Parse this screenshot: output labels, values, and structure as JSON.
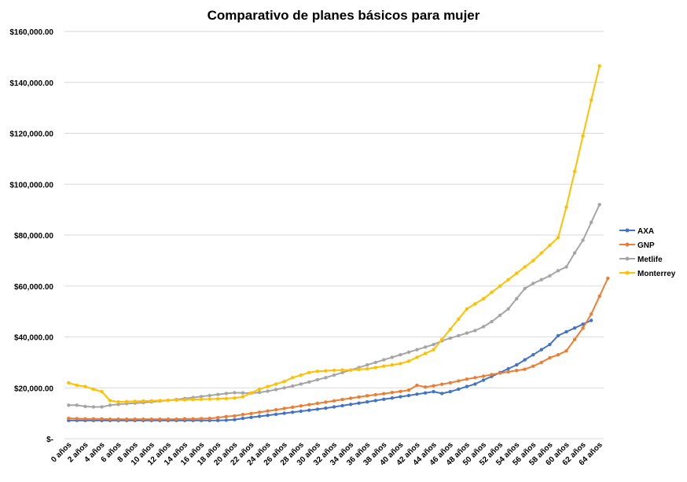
{
  "chart_data": {
    "type": "line",
    "title": "Comparativo de planes básicos para mujer",
    "xlabel": "",
    "ylabel": "",
    "ylim": [
      0,
      160000
    ],
    "y_ticks": [
      {
        "value": 0,
        "label": "$-"
      },
      {
        "value": 20000,
        "label": "$20,000.00"
      },
      {
        "value": 40000,
        "label": "$40,000.00"
      },
      {
        "value": 60000,
        "label": "$60,000.00"
      },
      {
        "value": 80000,
        "label": "$80,000.00"
      },
      {
        "value": 100000,
        "label": "$100,000.00"
      },
      {
        "value": 120000,
        "label": "$120,000.00"
      },
      {
        "value": 140000,
        "label": "$140,000.00"
      },
      {
        "value": 160000,
        "label": "$160,000.00"
      }
    ],
    "x_tick_labels": [
      "0 años",
      "2 años",
      "4 años",
      "6 años",
      "8 años",
      "10 años",
      "12 años",
      "14 años",
      "16 años",
      "18 años",
      "20 años",
      "22 años",
      "24 años",
      "26 años",
      "28 años",
      "30 años",
      "32 años",
      "34 años",
      "36 años",
      "38 años",
      "40 años",
      "42 años",
      "44 años",
      "46 años",
      "48 años",
      "50 años",
      "52 años",
      "54 años",
      "56 años",
      "58 años",
      "60 años",
      "62 años",
      "64 años"
    ],
    "grid": "horizontal",
    "legend_position": "right",
    "series": [
      {
        "name": "AXA",
        "color": "#4472C4",
        "values": [
          7200,
          7200,
          7200,
          7200,
          7200,
          7200,
          7200,
          7200,
          7200,
          7200,
          7200,
          7200,
          7200,
          7200,
          7200,
          7200,
          7200,
          7200,
          7200,
          7300,
          7500,
          8000,
          8400,
          8800,
          9200,
          9600,
          10000,
          10400,
          10800,
          11200,
          11600,
          12000,
          12500,
          13000,
          13500,
          14000,
          14500,
          15000,
          15500,
          16000,
          16500,
          17000,
          17500,
          18000,
          18500,
          17800,
          18500,
          19500,
          20500,
          21500,
          23000,
          24500,
          26000,
          27500,
          29000,
          31000,
          33000,
          35000,
          37000,
          40500,
          42000,
          43500,
          45000,
          46500
        ]
      },
      {
        "name": "GNP",
        "color": "#ED7D31",
        "values": [
          8000,
          7900,
          7800,
          7800,
          7800,
          7700,
          7700,
          7700,
          7700,
          7700,
          7700,
          7700,
          7700,
          7700,
          7800,
          7800,
          7900,
          8000,
          8300,
          8700,
          9000,
          9500,
          9900,
          10400,
          10900,
          11400,
          11900,
          12400,
          12900,
          13400,
          13900,
          14400,
          14900,
          15400,
          15900,
          16400,
          16900,
          17300,
          17700,
          18200,
          18600,
          19100,
          21000,
          20300,
          20800,
          21400,
          22000,
          22700,
          23400,
          24000,
          24600,
          25200,
          25800,
          26300,
          26800,
          27300,
          28500,
          30000,
          31800,
          33000,
          34500,
          39000,
          43500,
          49000,
          56000,
          63000
        ]
      },
      {
        "name": "Metlife",
        "color": "#A5A5A5",
        "values": [
          13200,
          13200,
          12700,
          12500,
          12500,
          13200,
          13500,
          13800,
          14000,
          14200,
          14500,
          14800,
          15100,
          15400,
          15800,
          16200,
          16600,
          17000,
          17400,
          17800,
          18100,
          18000,
          17900,
          18200,
          18700,
          19300,
          20000,
          20700,
          21500,
          22300,
          23200,
          24000,
          25000,
          26000,
          27000,
          28000,
          29000,
          30000,
          31000,
          32000,
          33000,
          34000,
          35000,
          36000,
          37000,
          38500,
          39500,
          40500,
          41500,
          42500,
          44000,
          46000,
          48500,
          51000,
          55000,
          59000,
          61000,
          62500,
          64000,
          66000,
          67500,
          73000,
          78000,
          85000,
          92000
        ]
      },
      {
        "name": "Monterrey",
        "color": "#FFC000",
        "values": [
          22000,
          21000,
          20500,
          19500,
          18500,
          15000,
          14500,
          14600,
          14700,
          14800,
          14900,
          15000,
          15100,
          15200,
          15300,
          15400,
          15500,
          15600,
          15700,
          15800,
          16000,
          16500,
          18000,
          19500,
          20500,
          21500,
          22500,
          24000,
          25000,
          26000,
          26500,
          26700,
          26900,
          27000,
          27000,
          27200,
          27500,
          28000,
          28500,
          29000,
          29500,
          30500,
          32000,
          33500,
          35000,
          39000,
          43000,
          47000,
          51000,
          53000,
          55000,
          57500,
          60000,
          62500,
          65000,
          67500,
          70000,
          73000,
          76000,
          79000,
          91000,
          105000,
          119000,
          133000,
          146500
        ]
      }
    ]
  }
}
